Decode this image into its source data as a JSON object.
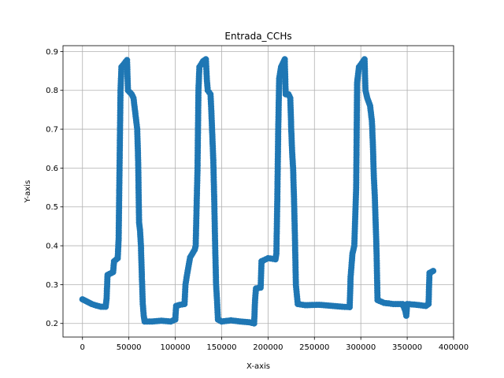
{
  "chart_data": {
    "type": "line",
    "title": "Entrada_CCHs",
    "xlabel": "X-axis",
    "ylabel": "Y-axis",
    "xlim": [
      -21000,
      400000
    ],
    "ylim": [
      0.165,
      0.915
    ],
    "grid": true,
    "marker": "circle",
    "color": "#1f77b4",
    "x_ticks": [
      0,
      50000,
      100000,
      150000,
      200000,
      250000,
      300000,
      350000,
      400000
    ],
    "x_tick_labels": [
      "0",
      "50000",
      "100000",
      "150000",
      "200000",
      "250000",
      "300000",
      "350000",
      "400000"
    ],
    "y_ticks": [
      0.2,
      0.3,
      0.4,
      0.5,
      0.6,
      0.7,
      0.8,
      0.9
    ],
    "y_tick_labels": [
      "0.2",
      "0.3",
      "0.4",
      "0.5",
      "0.6",
      "0.7",
      "0.8",
      "0.9"
    ],
    "series": [
      {
        "keypoints": [
          [
            0,
            0.262
          ],
          [
            5000,
            0.256
          ],
          [
            10000,
            0.25
          ],
          [
            15000,
            0.246
          ],
          [
            20000,
            0.243
          ],
          [
            25000,
            0.243
          ],
          [
            26000,
            0.265
          ],
          [
            27000,
            0.325
          ],
          [
            33000,
            0.332
          ],
          [
            34000,
            0.36
          ],
          [
            38000,
            0.368
          ],
          [
            39000,
            0.42
          ],
          [
            41000,
            0.8
          ],
          [
            42000,
            0.86
          ],
          [
            48000,
            0.878
          ],
          [
            49000,
            0.8
          ],
          [
            53000,
            0.79
          ],
          [
            55000,
            0.78
          ],
          [
            57000,
            0.74
          ],
          [
            59000,
            0.7
          ],
          [
            60000,
            0.62
          ],
          [
            61000,
            0.46
          ],
          [
            62000,
            0.44
          ],
          [
            63000,
            0.4
          ],
          [
            64000,
            0.32
          ],
          [
            65000,
            0.25
          ],
          [
            66000,
            0.22
          ],
          [
            67000,
            0.205
          ],
          [
            75000,
            0.205
          ],
          [
            85000,
            0.207
          ],
          [
            95000,
            0.205
          ],
          [
            100000,
            0.21
          ],
          [
            101000,
            0.245
          ],
          [
            105000,
            0.248
          ],
          [
            110000,
            0.25
          ],
          [
            111000,
            0.3
          ],
          [
            113000,
            0.33
          ],
          [
            116000,
            0.37
          ],
          [
            121000,
            0.39
          ],
          [
            122000,
            0.4
          ],
          [
            124000,
            0.6
          ],
          [
            125000,
            0.8
          ],
          [
            126000,
            0.86
          ],
          [
            130000,
            0.875
          ],
          [
            133000,
            0.88
          ],
          [
            134000,
            0.83
          ],
          [
            135000,
            0.8
          ],
          [
            138000,
            0.79
          ],
          [
            139000,
            0.74
          ],
          [
            140000,
            0.68
          ],
          [
            141000,
            0.62
          ],
          [
            142000,
            0.52
          ],
          [
            143000,
            0.4
          ],
          [
            144000,
            0.3
          ],
          [
            145000,
            0.26
          ],
          [
            146000,
            0.21
          ],
          [
            150000,
            0.205
          ],
          [
            160000,
            0.208
          ],
          [
            170000,
            0.205
          ],
          [
            180000,
            0.203
          ],
          [
            185000,
            0.2
          ],
          [
            186000,
            0.26
          ],
          [
            187000,
            0.29
          ],
          [
            192000,
            0.292
          ],
          [
            193000,
            0.36
          ],
          [
            200000,
            0.368
          ],
          [
            208000,
            0.365
          ],
          [
            209000,
            0.38
          ],
          [
            210000,
            0.52
          ],
          [
            211000,
            0.7
          ],
          [
            212000,
            0.83
          ],
          [
            214000,
            0.86
          ],
          [
            218000,
            0.88
          ],
          [
            219000,
            0.79
          ],
          [
            222000,
            0.79
          ],
          [
            224000,
            0.78
          ],
          [
            225000,
            0.7
          ],
          [
            226000,
            0.64
          ],
          [
            227000,
            0.6
          ],
          [
            228000,
            0.52
          ],
          [
            229000,
            0.42
          ],
          [
            230000,
            0.3
          ],
          [
            232000,
            0.25
          ],
          [
            240000,
            0.247
          ],
          [
            255000,
            0.248
          ],
          [
            270000,
            0.245
          ],
          [
            280000,
            0.243
          ],
          [
            288000,
            0.242
          ],
          [
            289000,
            0.32
          ],
          [
            291000,
            0.38
          ],
          [
            293000,
            0.4
          ],
          [
            295000,
            0.55
          ],
          [
            296000,
            0.82
          ],
          [
            298000,
            0.86
          ],
          [
            304000,
            0.88
          ],
          [
            305000,
            0.8
          ],
          [
            307000,
            0.78
          ],
          [
            310000,
            0.76
          ],
          [
            312000,
            0.72
          ],
          [
            313000,
            0.66
          ],
          [
            314000,
            0.58
          ],
          [
            315000,
            0.53
          ],
          [
            316000,
            0.46
          ],
          [
            317000,
            0.38
          ],
          [
            318000,
            0.26
          ],
          [
            325000,
            0.253
          ],
          [
            335000,
            0.25
          ],
          [
            345000,
            0.25
          ],
          [
            348000,
            0.232
          ],
          [
            349000,
            0.22
          ],
          [
            350000,
            0.25
          ],
          [
            360000,
            0.248
          ],
          [
            370000,
            0.245
          ],
          [
            373000,
            0.25
          ],
          [
            374000,
            0.33
          ],
          [
            378000,
            0.335
          ]
        ]
      }
    ]
  }
}
